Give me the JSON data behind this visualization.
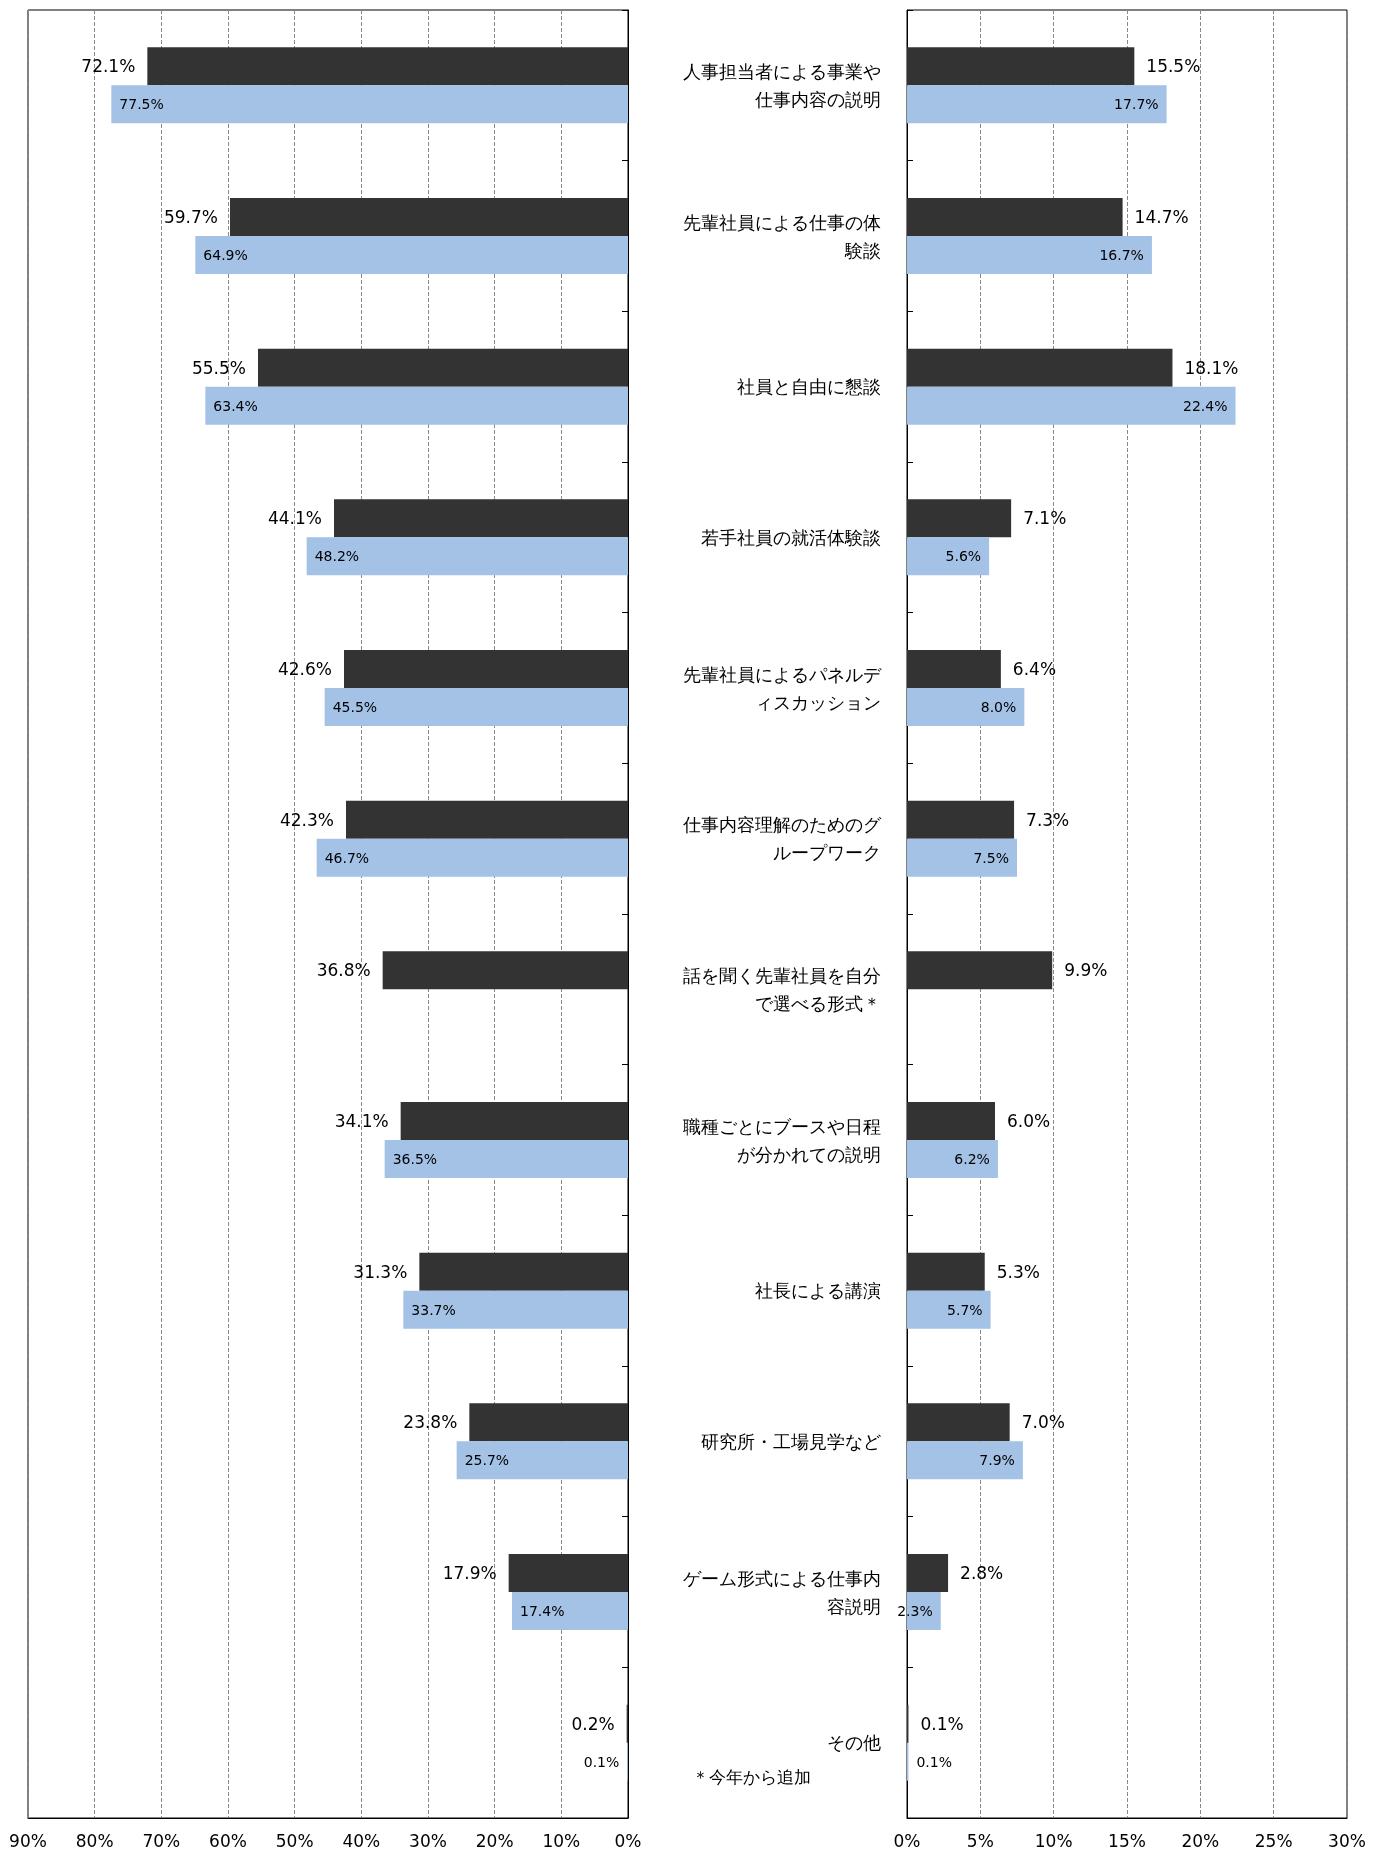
{
  "chart_data": [
    {
      "type": "bar",
      "orientation": "horizontal",
      "categories": [
        null,
        null,
        null,
        null,
        null,
        null,
        null,
        null,
        null,
        null,
        null,
        null
      ],
      "series": [
        {
          "color": "#333333",
          "values": [
            72.1,
            59.7,
            55.5,
            44.1,
            42.6,
            42.3,
            36.8,
            34.1,
            31.3,
            23.8,
            17.9,
            0.2
          ],
          "value_labels": [
            "72.1%",
            "59.7%",
            "55.5%",
            "44.1%",
            "42.6%",
            "42.3%",
            "36.8%",
            "34.1%",
            "31.3%",
            "23.8%",
            "17.9%",
            "0.2%"
          ]
        },
        {
          "color": "#a3c2e6",
          "values": [
            77.5,
            64.9,
            63.4,
            48.2,
            45.5,
            46.7,
            null,
            36.5,
            33.7,
            25.7,
            17.4,
            0.1
          ],
          "value_labels": [
            "77.5%",
            "64.9%",
            "63.4%",
            "48.2%",
            "45.5%",
            "46.7%",
            null,
            "36.5%",
            "33.7%",
            "25.7%",
            "17.4%",
            "0.1%"
          ]
        }
      ],
      "xlim": [
        90,
        0
      ],
      "xticks": [
        {
          "value": 90,
          "label": "90%"
        },
        {
          "value": 80,
          "label": "80%"
        },
        {
          "value": 70,
          "label": "70%"
        },
        {
          "value": 60,
          "label": "60%"
        },
        {
          "value": 50,
          "label": "50%"
        },
        {
          "value": 40,
          "label": "40%"
        },
        {
          "value": 30,
          "label": "30%"
        },
        {
          "value": 20,
          "label": "20%"
        },
        {
          "value": 10,
          "label": "10%"
        },
        {
          "value": 0,
          "label": "0%"
        }
      ],
      "grid": "x",
      "tick_labels": "x"
    },
    {
      "type": "bar",
      "orientation": "horizontal",
      "categories": [
        "人事担当者による事業や仕事内容の説明",
        "先輩社員による仕事の体験談",
        "社員と自由に懇談",
        "若手社員の就活体験談",
        "先輩社員によるパネルディスカッション",
        "仕事内容理解のためのグループワーク",
        "話を聞く先輩社員を自分で選べる形式＊",
        "職種ごとにブースや日程が分かれての説明",
        "社長による講演",
        "研究所・工場見学など",
        "ゲーム形式による仕事内容説明",
        "その他"
      ],
      "series": [
        {
          "color": "#333333",
          "values": [
            15.5,
            14.7,
            18.1,
            7.1,
            6.4,
            7.3,
            9.9,
            6.0,
            5.3,
            7.0,
            2.8,
            0.1
          ],
          "value_labels": [
            "15.5%",
            "14.7%",
            "18.1%",
            "7.1%",
            "6.4%",
            "7.3%",
            "9.9%",
            "6.0%",
            "5.3%",
            "7.0%",
            "2.8%",
            "0.1%"
          ]
        },
        {
          "color": "#a3c2e6",
          "values": [
            17.7,
            16.7,
            22.4,
            5.6,
            8.0,
            7.5,
            null,
            6.2,
            5.7,
            7.9,
            2.3,
            0.1
          ],
          "value_labels": [
            "17.7%",
            "16.7%",
            "22.4%",
            "5.6%",
            "8.0%",
            "7.5%",
            null,
            "6.2%",
            "5.7%",
            "7.9%",
            "2.3%",
            "0.1%"
          ]
        }
      ],
      "xlim": [
        0,
        30
      ],
      "xticks": [
        {
          "value": 0,
          "label": "0%"
        },
        {
          "value": 5,
          "label": "5%"
        },
        {
          "value": 10,
          "label": "10%"
        },
        {
          "value": 15,
          "label": "15%"
        },
        {
          "value": 20,
          "label": "20%"
        },
        {
          "value": 25,
          "label": "25%"
        },
        {
          "value": 30,
          "label": "30%"
        }
      ],
      "grid": "x",
      "annotations": [
        "＊今年から追加"
      ]
    }
  ]
}
